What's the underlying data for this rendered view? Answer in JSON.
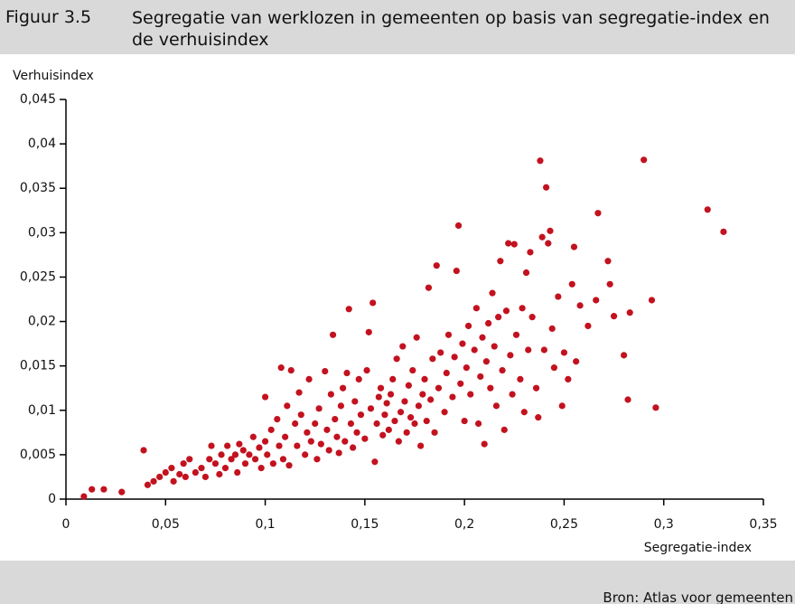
{
  "chart_data": {
    "type": "scatter",
    "label": "Figuur 3.5",
    "title": "Segregatie van werklozen in gemeenten op basis van segregatie-index en de verhuisindex",
    "y_label": "Verhuisindex",
    "x_label": "Segregatie-index",
    "source": "Bron: Atlas voor gemeenten",
    "color": "#c3121f",
    "grid": false,
    "xlim": [
      0,
      0.35
    ],
    "ylim": [
      0,
      0.045
    ],
    "xticks": [
      0,
      {
        "value": 0.05,
        "label": "0,05"
      },
      {
        "value": 0.1,
        "label": "0,1"
      },
      {
        "value": 0.15,
        "label": "0,15"
      },
      {
        "value": 0.2,
        "label": "0,2"
      },
      {
        "value": 0.25,
        "label": "0,25"
      },
      {
        "value": 0.3,
        "label": "0,3"
      },
      {
        "value": 0.35,
        "label": "0,35"
      }
    ],
    "yticks": [
      0,
      {
        "value": 0.005,
        "label": "0,005"
      },
      {
        "value": 0.01,
        "label": "0,01"
      },
      {
        "value": 0.015,
        "label": "0,015"
      },
      {
        "value": 0.02,
        "label": "0,02"
      },
      {
        "value": 0.025,
        "label": "0,025"
      },
      {
        "value": 0.03,
        "label": "0,03"
      },
      {
        "value": 0.035,
        "label": "0,035"
      },
      {
        "value": 0.04,
        "label": "0,04"
      },
      {
        "value": 0.045,
        "label": "0,045"
      }
    ],
    "x": [
      0.009,
      0.013,
      0.019,
      0.028,
      0.039,
      0.041,
      0.044,
      0.047,
      0.05,
      0.053,
      0.054,
      0.057,
      0.059,
      0.06,
      0.062,
      0.065,
      0.068,
      0.07,
      0.072,
      0.073,
      0.075,
      0.077,
      0.078,
      0.08,
      0.081,
      0.083,
      0.085,
      0.086,
      0.087,
      0.089,
      0.09,
      0.092,
      0.094,
      0.095,
      0.097,
      0.098,
      0.1,
      0.1,
      0.101,
      0.103,
      0.104,
      0.106,
      0.107,
      0.108,
      0.109,
      0.11,
      0.111,
      0.112,
      0.113,
      0.115,
      0.116,
      0.117,
      0.118,
      0.12,
      0.121,
      0.122,
      0.123,
      0.125,
      0.126,
      0.127,
      0.128,
      0.13,
      0.131,
      0.132,
      0.133,
      0.134,
      0.135,
      0.136,
      0.137,
      0.138,
      0.139,
      0.14,
      0.141,
      0.142,
      0.143,
      0.144,
      0.145,
      0.146,
      0.147,
      0.148,
      0.15,
      0.151,
      0.152,
      0.153,
      0.154,
      0.155,
      0.156,
      0.157,
      0.158,
      0.159,
      0.16,
      0.161,
      0.162,
      0.163,
      0.164,
      0.165,
      0.166,
      0.167,
      0.168,
      0.169,
      0.17,
      0.171,
      0.172,
      0.173,
      0.174,
      0.175,
      0.176,
      0.177,
      0.178,
      0.179,
      0.18,
      0.181,
      0.182,
      0.183,
      0.184,
      0.185,
      0.186,
      0.187,
      0.188,
      0.19,
      0.191,
      0.192,
      0.194,
      0.195,
      0.196,
      0.197,
      0.198,
      0.199,
      0.2,
      0.201,
      0.202,
      0.203,
      0.205,
      0.206,
      0.207,
      0.208,
      0.209,
      0.21,
      0.211,
      0.212,
      0.213,
      0.214,
      0.215,
      0.216,
      0.217,
      0.218,
      0.219,
      0.22,
      0.221,
      0.222,
      0.223,
      0.224,
      0.225,
      0.226,
      0.228,
      0.229,
      0.23,
      0.231,
      0.232,
      0.233,
      0.234,
      0.236,
      0.237,
      0.238,
      0.239,
      0.24,
      0.241,
      0.242,
      0.243,
      0.244,
      0.245,
      0.247,
      0.249,
      0.25,
      0.252,
      0.254,
      0.255,
      0.256,
      0.258,
      0.262,
      0.266,
      0.267,
      0.272,
      0.273,
      0.275,
      0.28,
      0.282,
      0.283,
      0.29,
      0.294,
      0.296,
      0.322,
      0.33
    ],
    "values": [
      0.0003,
      0.0011,
      0.0011,
      0.0008,
      0.0055,
      0.0016,
      0.002,
      0.0025,
      0.003,
      0.0035,
      0.002,
      0.0028,
      0.004,
      0.0025,
      0.0045,
      0.003,
      0.0035,
      0.0025,
      0.0045,
      0.006,
      0.004,
      0.0028,
      0.005,
      0.0035,
      0.006,
      0.0045,
      0.005,
      0.003,
      0.0062,
      0.0055,
      0.004,
      0.005,
      0.007,
      0.0045,
      0.0058,
      0.0035,
      0.0065,
      0.0115,
      0.005,
      0.0078,
      0.004,
      0.009,
      0.006,
      0.0148,
      0.0045,
      0.007,
      0.0105,
      0.0038,
      0.0145,
      0.0085,
      0.006,
      0.012,
      0.0095,
      0.005,
      0.0075,
      0.0135,
      0.0065,
      0.0085,
      0.0045,
      0.0102,
      0.0062,
      0.0144,
      0.0078,
      0.0055,
      0.0118,
      0.0185,
      0.009,
      0.007,
      0.0052,
      0.0105,
      0.0125,
      0.0065,
      0.0142,
      0.0214,
      0.0085,
      0.0058,
      0.011,
      0.0075,
      0.0135,
      0.0095,
      0.0068,
      0.0145,
      0.0188,
      0.0102,
      0.0221,
      0.0042,
      0.0085,
      0.0115,
      0.0125,
      0.0072,
      0.0095,
      0.0108,
      0.0078,
      0.0118,
      0.0135,
      0.0088,
      0.0158,
      0.0065,
      0.0098,
      0.0172,
      0.011,
      0.0075,
      0.0128,
      0.0092,
      0.0145,
      0.0085,
      0.0182,
      0.0105,
      0.006,
      0.0118,
      0.0135,
      0.0088,
      0.0238,
      0.0112,
      0.0158,
      0.0075,
      0.0263,
      0.0125,
      0.0165,
      0.0098,
      0.0142,
      0.0185,
      0.0115,
      0.016,
      0.0257,
      0.0308,
      0.013,
      0.0175,
      0.0088,
      0.0148,
      0.0195,
      0.0118,
      0.0168,
      0.0215,
      0.0085,
      0.0138,
      0.0182,
      0.0062,
      0.0155,
      0.0198,
      0.0125,
      0.0232,
      0.0172,
      0.0105,
      0.0205,
      0.0268,
      0.0145,
      0.0078,
      0.0212,
      0.0288,
      0.0162,
      0.0118,
      0.0287,
      0.0185,
      0.0135,
      0.0215,
      0.0098,
      0.0255,
      0.0168,
      0.0278,
      0.0205,
      0.0125,
      0.0092,
      0.0381,
      0.0295,
      0.0168,
      0.0351,
      0.0288,
      0.0302,
      0.0192,
      0.0148,
      0.0228,
      0.0105,
      0.0165,
      0.0135,
      0.0242,
      0.0284,
      0.0155,
      0.0218,
      0.0195,
      0.0224,
      0.0322,
      0.0268,
      0.0242,
      0.0206,
      0.0162,
      0.0112,
      0.021,
      0.0382,
      0.0224,
      0.0103,
      0.0326,
      0.0301
    ]
  }
}
